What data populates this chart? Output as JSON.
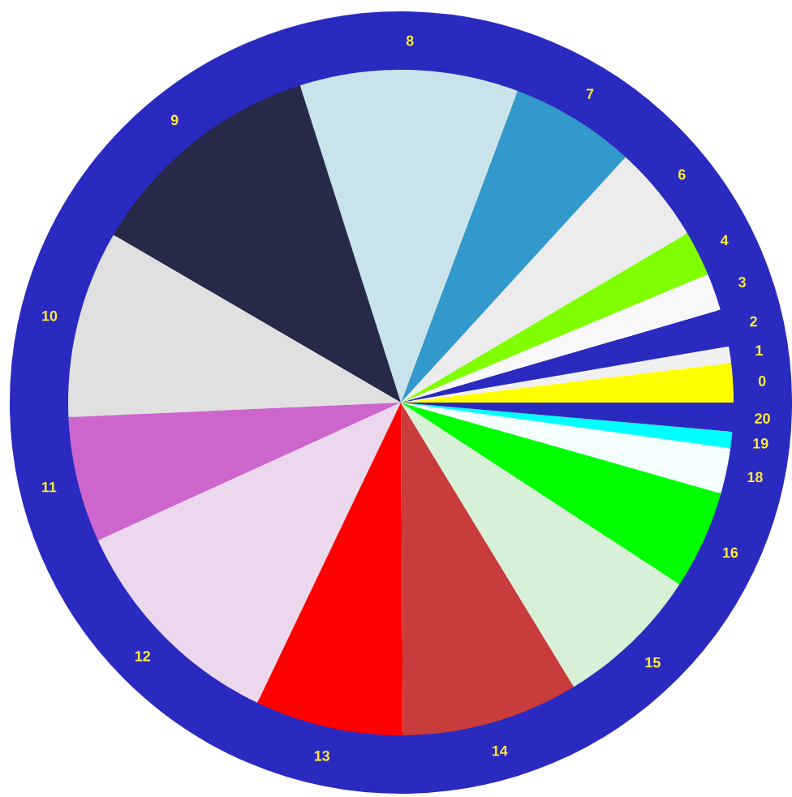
{
  "chart_data": {
    "type": "pie",
    "categories": [
      "0",
      "1",
      "2",
      "3",
      "4",
      "6",
      "7",
      "8",
      "9",
      "10",
      "11",
      "12",
      "13",
      "14",
      "15",
      "16",
      "18",
      "19",
      "20"
    ],
    "values": [
      1.9,
      0.8,
      1.8,
      1.8,
      2.2,
      4.7,
      6.1,
      10.6,
      11.7,
      9.1,
      6.1,
      11.1,
      7.2,
      8.6,
      7.1,
      4.8,
      2.2,
      0.8,
      1.4
    ],
    "colors": [
      "#ffff00",
      "#f0f0f0",
      "#2a2ac0",
      "#f8f8f8",
      "#80ff00",
      "#ececec",
      "#3399cc",
      "#c8e4ea",
      "#262a48",
      "#e0e0e0",
      "#cc66cc",
      "#ecd8ec",
      "#ff0000",
      "#c83c3c",
      "#d8f0d8",
      "#00ff00",
      "#f4ffff",
      "#00ffff",
      "#2a2ac0"
    ]
  }
}
